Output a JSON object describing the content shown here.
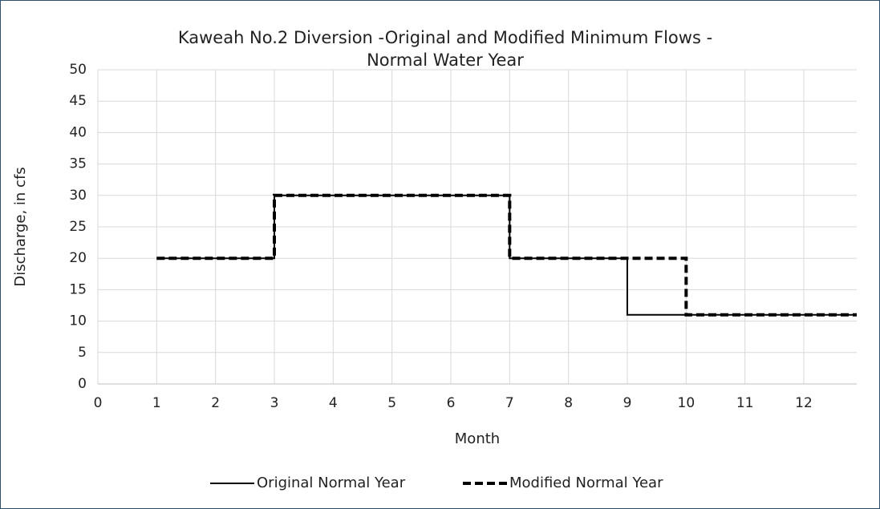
{
  "chart_data": {
    "type": "line",
    "title": [
      "Kaweah No.2 Diversion -Original and Modified Minimum Flows -",
      "Normal Water Year"
    ],
    "x_label": "Month",
    "y_label": "Discharge, in cfs",
    "xlim": [
      0,
      12.9
    ],
    "xticks": [
      0,
      1,
      2,
      3,
      4,
      5,
      6,
      7,
      8,
      9,
      10,
      11,
      12
    ],
    "ylim": [
      0,
      50
    ],
    "yticks": [
      0,
      5,
      10,
      15,
      20,
      25,
      30,
      35,
      40,
      45,
      50
    ],
    "grid": true,
    "legend": "bottom",
    "series": [
      {
        "name": "Original Normal Year",
        "color": "#000000",
        "line_style": "solid",
        "x": [
          1,
          3,
          3,
          7,
          7,
          9,
          9,
          12.9
        ],
        "values": [
          20,
          20,
          30,
          30,
          20,
          20,
          11,
          11
        ]
      },
      {
        "name": "Modified Normal Year",
        "color": "#000000",
        "line_style": "dashed",
        "x": [
          1,
          3,
          3,
          7,
          7,
          10,
          10,
          12.9
        ],
        "values": [
          20,
          20,
          30,
          30,
          20,
          20,
          11,
          11
        ]
      }
    ]
  }
}
